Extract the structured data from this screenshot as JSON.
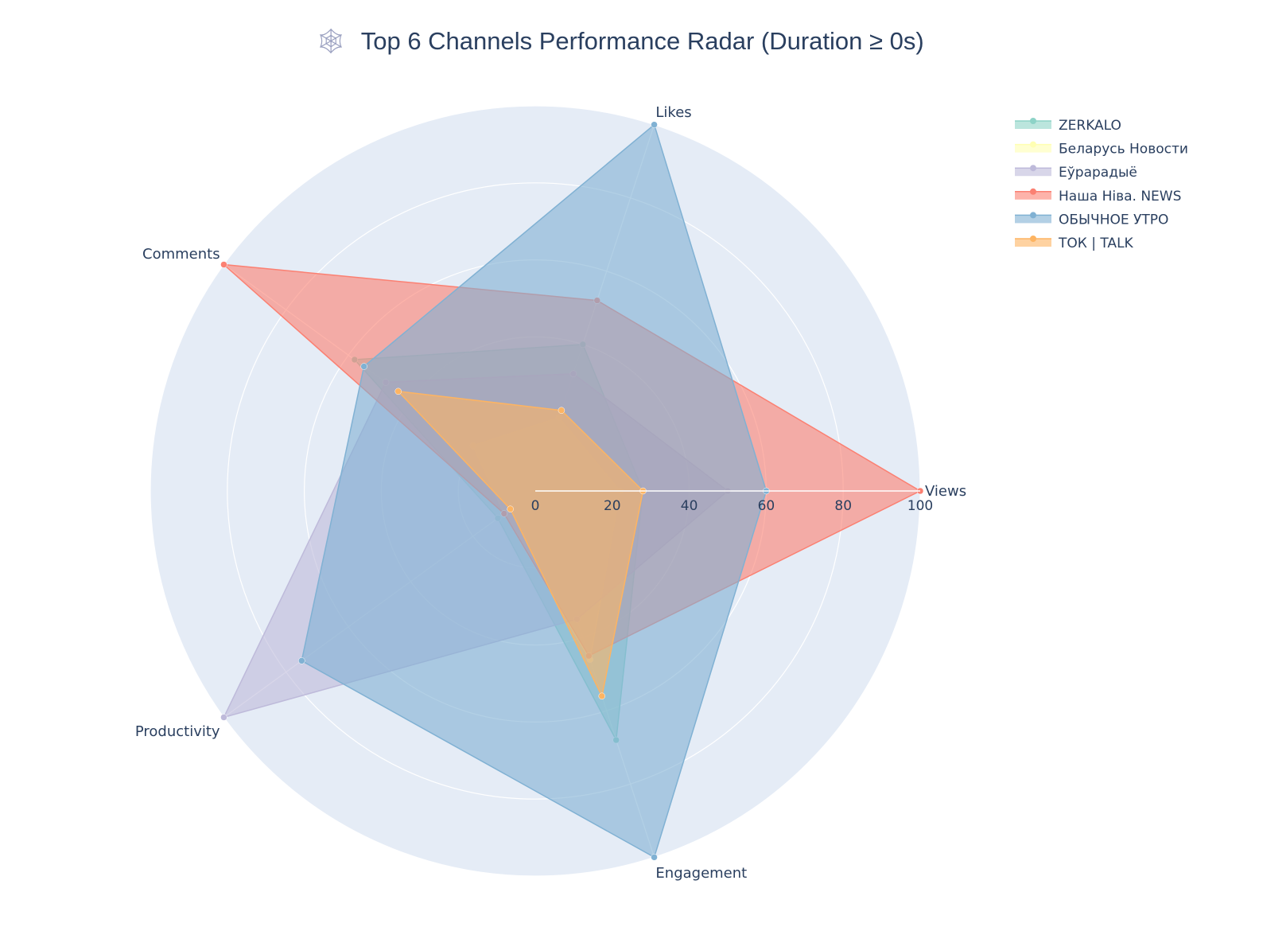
{
  "chart_data": {
    "type": "radar",
    "title": "Top 6 Channels Performance Radar (Duration ≥ 0s)",
    "title_icon": "spider-web-icon",
    "title_icon_glyph": "🕸",
    "axes": [
      "Views",
      "Likes",
      "Comments",
      "Productivity",
      "Engagement"
    ],
    "radial_range": [
      0,
      100
    ],
    "radial_ticks": [
      "0",
      "20",
      "40",
      "60",
      "80",
      "100"
    ],
    "grid": true,
    "legend_position": "top-right",
    "series": [
      {
        "name": "ZERKALO",
        "color": "#8dd3c7",
        "values": [
          28,
          40,
          58,
          12,
          68
        ]
      },
      {
        "name": "Беларусь Новости",
        "color": "#ffffb3",
        "values": [
          22,
          20,
          20,
          10,
          46
        ]
      },
      {
        "name": "Еўрарадыё",
        "color": "#bebada",
        "values": [
          50,
          32,
          48,
          100,
          35
        ]
      },
      {
        "name": "Наша Ніва. NEWS",
        "color": "#fb8072",
        "values": [
          100,
          52,
          100,
          10,
          45
        ]
      },
      {
        "name": "ОБЫЧНОЕ УТРО",
        "color": "#80b1d3",
        "values": [
          60,
          100,
          55,
          75,
          100
        ]
      },
      {
        "name": "ТОК | TALK",
        "color": "#fdb462",
        "values": [
          28,
          22,
          44,
          8,
          56
        ]
      }
    ]
  }
}
